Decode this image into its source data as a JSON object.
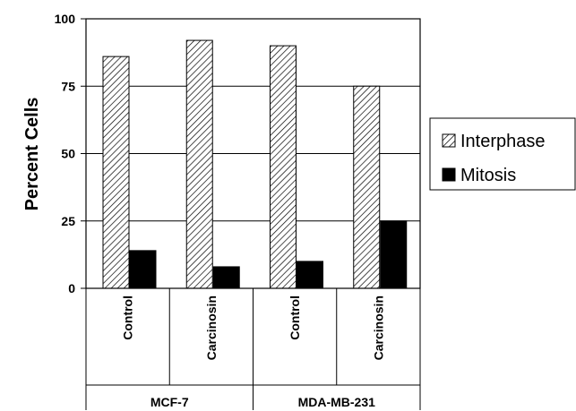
{
  "chart_data": {
    "type": "bar",
    "title": "",
    "xlabel": "",
    "ylabel": "Percent Cells",
    "ylim": [
      0,
      100
    ],
    "yticks": [
      0,
      25,
      50,
      75,
      100
    ],
    "grid": true,
    "legend_position": "right",
    "categories": [
      "Control",
      "Carcinosin",
      "Control",
      "Carcinosin"
    ],
    "groups": [
      {
        "label": "MCF-7",
        "categories": [
          "Control",
          "Carcinosin"
        ]
      },
      {
        "label": "MDA-MB-231",
        "categories": [
          "Control",
          "Carcinosin"
        ]
      }
    ],
    "series": [
      {
        "name": "Interphase",
        "values": [
          86,
          92,
          90,
          75
        ],
        "fill": "hatched"
      },
      {
        "name": "Mitosis",
        "values": [
          14,
          8,
          10,
          25
        ],
        "fill": "#000000"
      }
    ]
  }
}
